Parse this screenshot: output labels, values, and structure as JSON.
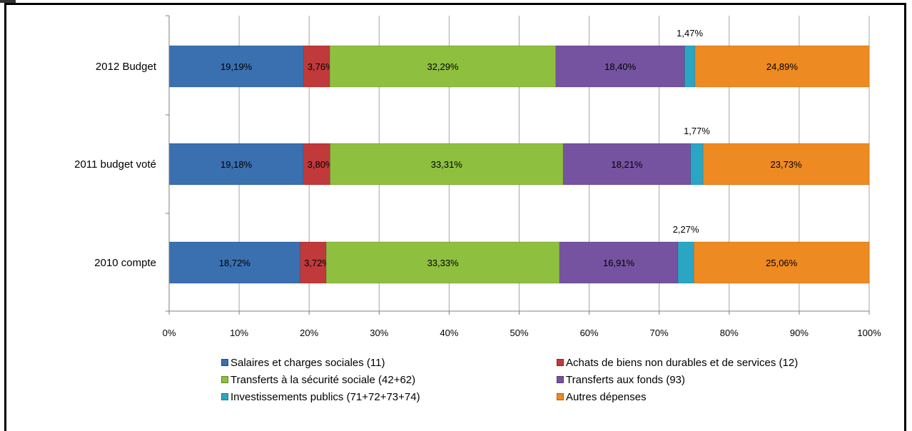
{
  "chart_data": {
    "type": "bar",
    "orientation": "horizontal",
    "stacked": "percent",
    "categories": [
      "2012 Budget",
      "2011 budget voté",
      "2010 compte"
    ],
    "series": [
      {
        "name": "Salaires et charges sociales (11)",
        "color": "#3a6fb0",
        "values": [
          19.19,
          19.18,
          18.72
        ],
        "labels": [
          "19,19%",
          "19,18%",
          "18,72%"
        ]
      },
      {
        "name": "Achats de biens non durables et de services (12)",
        "color": "#c0393b",
        "values": [
          3.76,
          3.8,
          3.72
        ],
        "labels": [
          "3,76%",
          "3,80%",
          "3,72%"
        ]
      },
      {
        "name": "Transferts à la sécurité sociale (42+62)",
        "color": "#8fbf3f",
        "values": [
          32.29,
          33.31,
          33.33
        ],
        "labels": [
          "32,29%",
          "33,31%",
          "33,33%"
        ]
      },
      {
        "name": "Transferts aux fonds (93)",
        "color": "#7653a0",
        "values": [
          18.4,
          18.21,
          16.91
        ],
        "labels": [
          "18,40%",
          "18,21%",
          "16,91%"
        ]
      },
      {
        "name": "Investissements publics (71+72+73+74)",
        "color": "#2aa6c4",
        "values": [
          1.47,
          1.77,
          2.27
        ],
        "labels": [
          "1,47%",
          "1,77%",
          "2,27%"
        ]
      },
      {
        "name": "Autres dépenses",
        "color": "#ee8a22",
        "values": [
          24.89,
          23.73,
          25.06
        ],
        "labels": [
          "24,89%",
          "23,73%",
          "25,06%"
        ]
      }
    ],
    "xticks": [
      "0%",
      "10%",
      "20%",
      "30%",
      "40%",
      "50%",
      "60%",
      "70%",
      "80%",
      "90%",
      "100%"
    ],
    "xlim": [
      0,
      100
    ],
    "grid": true,
    "legend_position": "bottom"
  }
}
